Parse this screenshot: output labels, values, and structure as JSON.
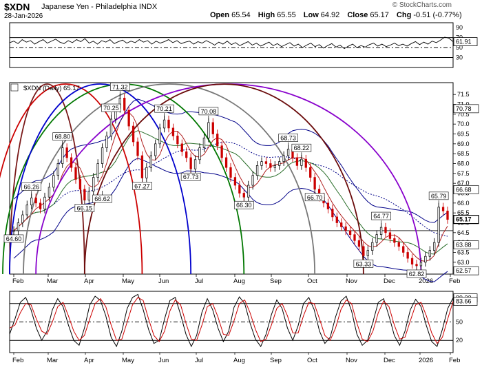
{
  "header": {
    "symbol": "$XDN",
    "name": "Japanese Yen - Philadelphia",
    "exchange": "INDX",
    "date": "28-Jan-2026",
    "open_label": "Open",
    "open": "65.54",
    "high_label": "High",
    "high": "65.55",
    "low_label": "Low",
    "low": "64.92",
    "close_label": "Close",
    "close": "65.17",
    "chg_label": "Chg",
    "chg": "-0.51 (-0.77%)",
    "credit": "© StockCharts.com"
  },
  "colors": {
    "up": "#000000",
    "down": "#cc0000",
    "rsi": "#000000",
    "price_badge": "#000000",
    "marker": "#000000"
  },
  "chart_data": [
    {
      "type": "line",
      "panel": "rsi",
      "y_ticks": [
        90,
        70,
        50,
        30
      ],
      "ylim": [
        10,
        100
      ],
      "bands": [
        70,
        50,
        30
      ],
      "last_value_label": "61.91",
      "series": [
        {
          "values": [
            60,
            63,
            58,
            66,
            61,
            64,
            57,
            62,
            66,
            59,
            63,
            67,
            61,
            58,
            64,
            60,
            66,
            62,
            68,
            59,
            63,
            57,
            64,
            61,
            66,
            58,
            62,
            65,
            59,
            63,
            60,
            66,
            61,
            64,
            57,
            63,
            59,
            62,
            66,
            60,
            64,
            58,
            61,
            63,
            57,
            62,
            59,
            64,
            60,
            55,
            61,
            57,
            63,
            56,
            60,
            54,
            58,
            62,
            55,
            59,
            53,
            57,
            61,
            54,
            58,
            52,
            56,
            60,
            53,
            57,
            50,
            55,
            59,
            52,
            56,
            49,
            54,
            58,
            51,
            55,
            48,
            53,
            57,
            50,
            54,
            51,
            56,
            59,
            53,
            57,
            52,
            55,
            59,
            54,
            57,
            53,
            58,
            62,
            56,
            61,
            57,
            63,
            60,
            65,
            71,
            69,
            61.91
          ]
        }
      ]
    },
    {
      "type": "line",
      "panel": "price",
      "legend": "$XDN (Daily) 65.17",
      "x_tick_labels": [
        "Feb",
        "Mar",
        "Apr",
        "May",
        "Jun",
        "Jul",
        "Aug",
        "Sep",
        "Oct",
        "Nov",
        "Dec",
        "2026",
        "Feb"
      ],
      "y_ticks": [
        63.0,
        63.5,
        64.0,
        64.5,
        65.0,
        65.5,
        66.0,
        66.5,
        67.0,
        67.5,
        68.0,
        68.5,
        69.0,
        69.5,
        70.0,
        70.5,
        71.0,
        71.5
      ],
      "ylim": [
        62.4,
        72.1
      ],
      "annotations": [
        "71.32",
        "70.25",
        "70.21",
        "70.08",
        "68.80",
        "68.73",
        "68.22",
        "67.73",
        "67.27",
        "66.62",
        "66.26",
        "66.15",
        "66.30",
        "66.70",
        "64.60",
        "64.77",
        "65.79",
        "63.33",
        "62.82"
      ],
      "right_labels": [
        "70.78",
        "66.68",
        "65.17",
        "63.88",
        "62.57"
      ],
      "close": [
        64.6,
        65.0,
        65.4,
        65.9,
        66.26,
        66.0,
        65.7,
        66.3,
        66.8,
        67.4,
        68.0,
        68.8,
        68.3,
        67.8,
        67.2,
        66.7,
        66.15,
        66.6,
        67.3,
        68.0,
        68.8,
        69.4,
        70.25,
        70.8,
        71.32,
        70.7,
        69.9,
        69.1,
        68.4,
        67.27,
        67.8,
        68.4,
        69.0,
        69.8,
        70.21,
        69.8,
        69.4,
        69.0,
        68.6,
        68.3,
        67.73,
        68.2,
        68.8,
        69.3,
        70.08,
        69.5,
        68.9,
        68.3,
        67.8,
        67.3,
        66.9,
        66.5,
        66.3,
        66.9,
        67.4,
        67.9,
        68.1,
        68.0,
        67.8,
        67.9,
        68.1,
        68.4,
        68.73,
        68.3,
        67.9,
        68.22,
        67.8,
        67.3,
        66.7,
        66.3,
        66.0,
        65.7,
        65.3,
        65.0,
        64.8,
        64.6,
        64.4,
        64.1,
        63.8,
        63.33,
        63.6,
        64.0,
        64.4,
        64.77,
        64.5,
        64.2,
        64.0,
        63.8,
        63.5,
        63.2,
        62.9,
        62.82,
        63.0,
        63.3,
        63.6,
        64.0,
        65.79,
        65.6,
        65.17
      ],
      "series": [
        {
          "values": [
            70.78
          ]
        },
        {
          "values": [
            66.68
          ]
        },
        {
          "values": [
            63.88
          ]
        },
        {
          "values": [
            62.57
          ]
        }
      ]
    },
    {
      "type": "line",
      "panel": "stochastic",
      "y_ticks": [
        80,
        50,
        20
      ],
      "ylim": [
        0,
        100
      ],
      "bands": [
        80,
        50,
        20
      ],
      "last_value_labels": [
        "89.22",
        "83.66"
      ],
      "series": [
        {
          "values": [
            30,
            55,
            82,
            90,
            70,
            40,
            20,
            35,
            70,
            88,
            75,
            45,
            20,
            12,
            40,
            78,
            92,
            85,
            60,
            25,
            10,
            35,
            72,
            90,
            95,
            70,
            38,
            15,
            20,
            55,
            85,
            90,
            62,
            30,
            10,
            28,
            66,
            88,
            70,
            40,
            18,
            35,
            74,
            91,
            80,
            48,
            22,
            10,
            30,
            62,
            86,
            72,
            40,
            20,
            44,
            80,
            90,
            70,
            35,
            15,
            25,
            58,
            84,
            92,
            68,
            30,
            12,
            20,
            50,
            82,
            88,
            60,
            28,
            12,
            35,
            70,
            87,
            75,
            44,
            18,
            10,
            38,
            72,
            89.22
          ]
        },
        {
          "values": [
            40,
            45,
            65,
            80,
            78,
            55,
            35,
            30,
            50,
            75,
            82,
            60,
            35,
            20,
            28,
            55,
            80,
            88,
            75,
            45,
            20,
            22,
            50,
            78,
            90,
            85,
            55,
            28,
            18,
            35,
            68,
            86,
            78,
            48,
            22,
            20,
            45,
            75,
            80,
            58,
            30,
            28,
            52,
            80,
            86,
            65,
            38,
            18,
            22,
            45,
            72,
            80,
            60,
            32,
            32,
            60,
            82,
            80,
            55,
            28,
            20,
            40,
            70,
            86,
            80,
            48,
            22,
            18,
            35,
            65,
            84,
            75,
            45,
            22,
            25,
            52,
            78,
            82,
            60,
            32,
            15,
            25,
            55,
            83.66
          ]
        }
      ]
    }
  ]
}
